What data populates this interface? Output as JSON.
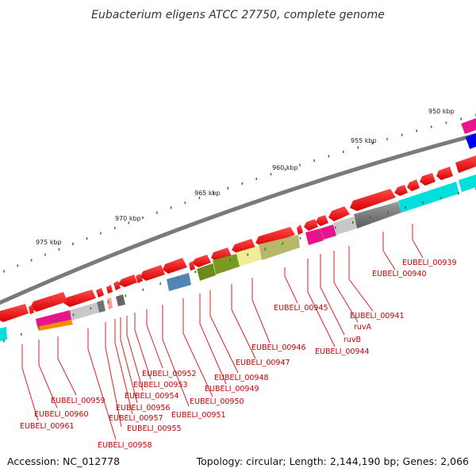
{
  "title": "Eubacterium eligens ATCC 27750, complete genome",
  "accession": "Accession: NC_012778",
  "summary": "Topology: circular; Length: 2,144,190 bp; Genes: 2,066",
  "colors": {
    "gene": "#ee0000",
    "label": "#cc0000",
    "tick": "#2e7d1e",
    "backbone": "#7a7a7a"
  },
  "scale_labels": [
    "950 kbp",
    "955 kbp",
    "960 kbp",
    "965 kbp",
    "970 kbp",
    "975 kbp"
  ],
  "gene_labels": [
    "EUBELI_00939",
    "EUBELI_00940",
    "EUBELI_00941",
    "ruvA",
    "ruvB",
    "EUBELI_00944",
    "EUBELI_00945",
    "EUBELI_00946",
    "EUBELI_00947",
    "EUBELI_00948",
    "EUBELI_00949",
    "EUBELI_00950",
    "EUBELI_00951",
    "EUBELI_00952",
    "EUBELI_00953",
    "EUBELI_00954",
    "EUBELI_00956",
    "EUBELI_00955",
    "EUBELI_00957",
    "EUBELI_00958",
    "EUBELI_00959",
    "EUBELI_00960",
    "EUBELI_00961"
  ]
}
